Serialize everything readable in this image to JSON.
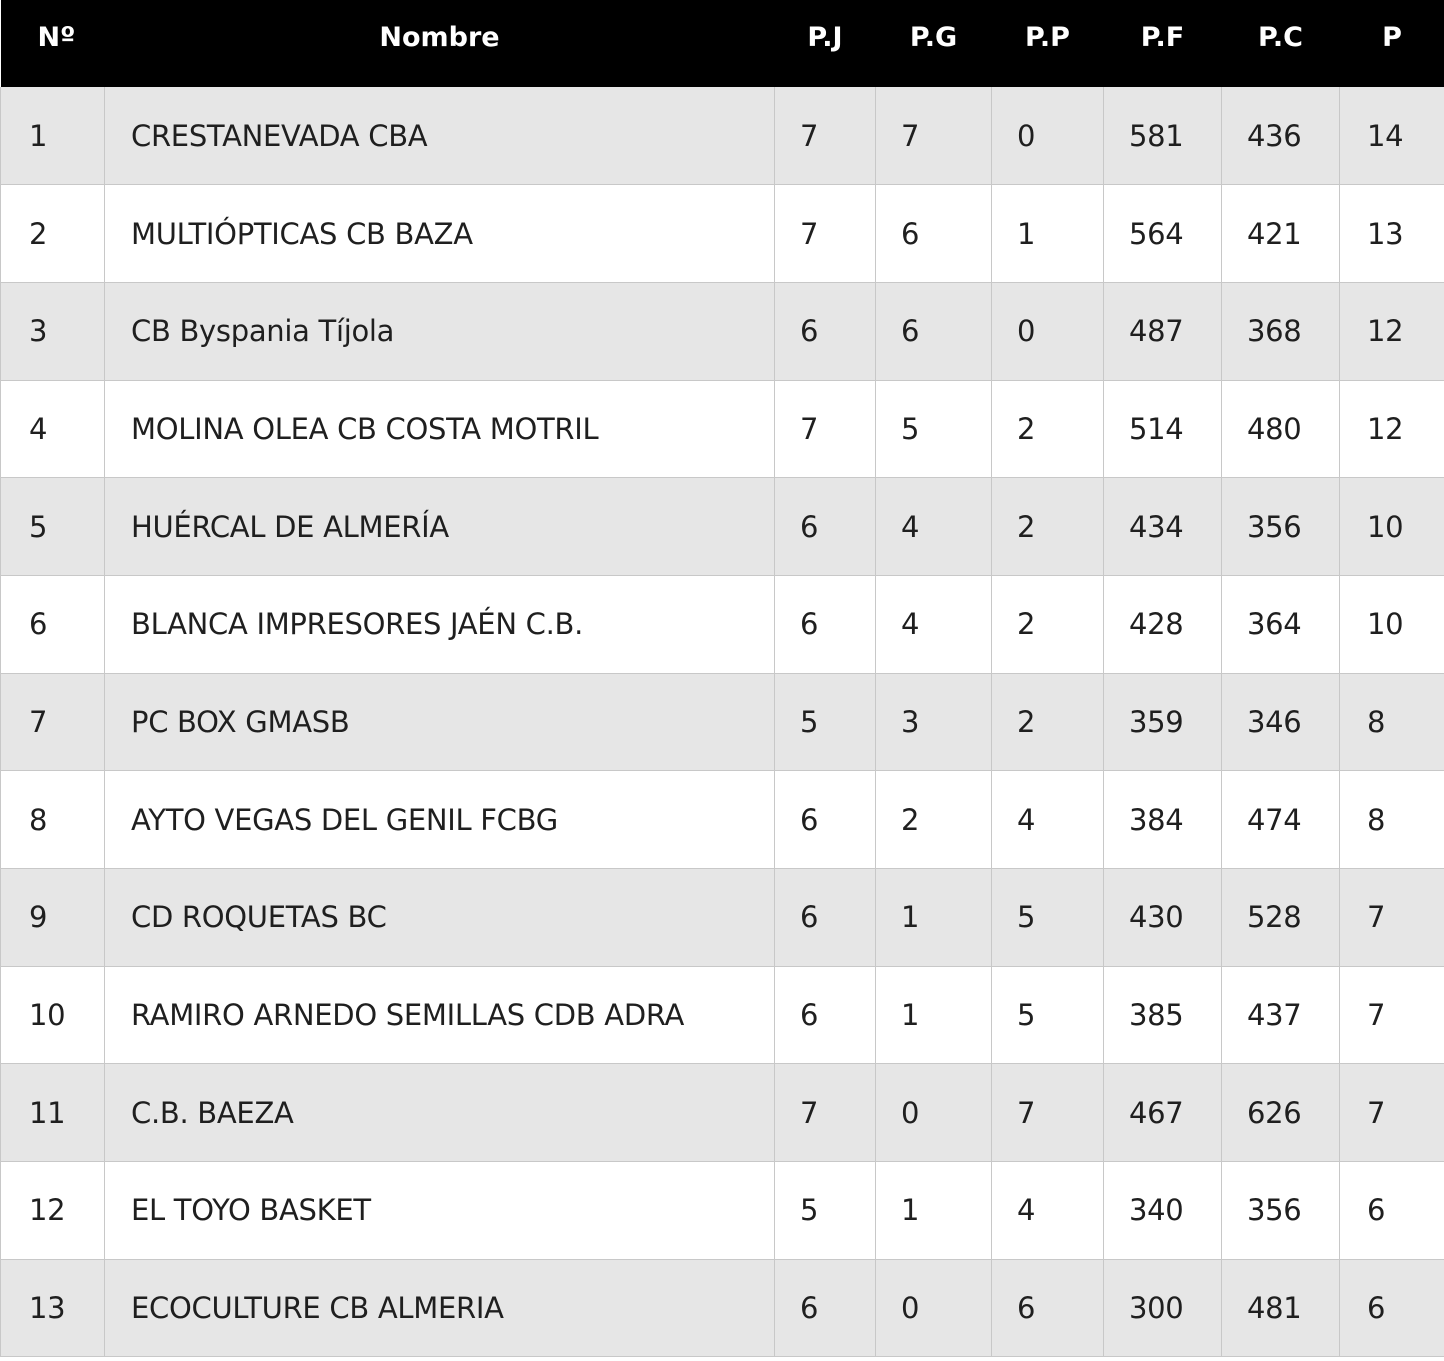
{
  "table": {
    "headers": {
      "pos": "Nº",
      "name": "Nombre",
      "pj": "P.J",
      "pg": "P.G",
      "pp": "P.P",
      "pf": "P.F",
      "pc": "P.C",
      "p": "P"
    },
    "rows": [
      {
        "pos": "1",
        "name": "CRESTANEVADA CBA",
        "pj": "7",
        "pg": "7",
        "pp": "0",
        "pf": "581",
        "pc": "436",
        "p": "14"
      },
      {
        "pos": "2",
        "name": "MULTIÓPTICAS CB BAZA",
        "pj": "7",
        "pg": "6",
        "pp": "1",
        "pf": "564",
        "pc": "421",
        "p": "13"
      },
      {
        "pos": "3",
        "name": "CB Byspania Tíjola",
        "pj": "6",
        "pg": "6",
        "pp": "0",
        "pf": "487",
        "pc": "368",
        "p": "12"
      },
      {
        "pos": "4",
        "name": "MOLINA OLEA CB COSTA MOTRIL",
        "pj": "7",
        "pg": "5",
        "pp": "2",
        "pf": "514",
        "pc": "480",
        "p": "12"
      },
      {
        "pos": "5",
        "name": "HUÉRCAL DE ALMERÍA",
        "pj": "6",
        "pg": "4",
        "pp": "2",
        "pf": "434",
        "pc": "356",
        "p": "10"
      },
      {
        "pos": "6",
        "name": "BLANCA IMPRESORES JAÉN C.B.",
        "pj": "6",
        "pg": "4",
        "pp": "2",
        "pf": "428",
        "pc": "364",
        "p": "10"
      },
      {
        "pos": "7",
        "name": "PC BOX GMASB",
        "pj": "5",
        "pg": "3",
        "pp": "2",
        "pf": "359",
        "pc": "346",
        "p": "8"
      },
      {
        "pos": "8",
        "name": "AYTO VEGAS DEL GENIL FCBG",
        "pj": "6",
        "pg": "2",
        "pp": "4",
        "pf": "384",
        "pc": "474",
        "p": "8"
      },
      {
        "pos": "9",
        "name": "CD ROQUETAS BC",
        "pj": "6",
        "pg": "1",
        "pp": "5",
        "pf": "430",
        "pc": "528",
        "p": "7"
      },
      {
        "pos": "10",
        "name": "RAMIRO ARNEDO SEMILLAS CDB ADRA",
        "pj": "6",
        "pg": "1",
        "pp": "5",
        "pf": "385",
        "pc": "437",
        "p": "7"
      },
      {
        "pos": "11",
        "name": "C.B. BAEZA",
        "pj": "7",
        "pg": "0",
        "pp": "7",
        "pf": "467",
        "pc": "626",
        "p": "7"
      },
      {
        "pos": "12",
        "name": "EL TOYO BASKET",
        "pj": "5",
        "pg": "1",
        "pp": "4",
        "pf": "340",
        "pc": "356",
        "p": "6"
      },
      {
        "pos": "13",
        "name": "ECOCULTURE CB ALMERIA",
        "pj": "6",
        "pg": "0",
        "pp": "6",
        "pf": "300",
        "pc": "481",
        "p": "6"
      }
    ]
  }
}
